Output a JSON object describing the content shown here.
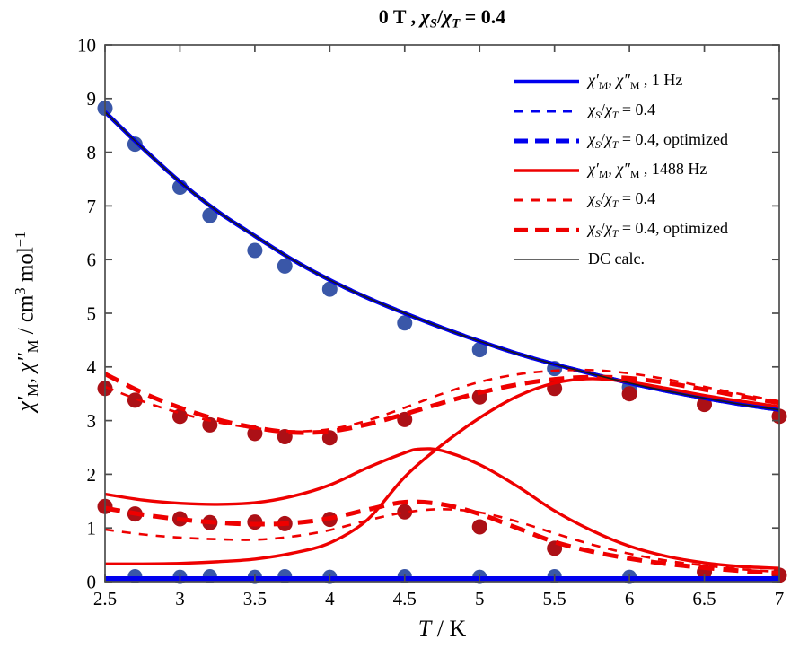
{
  "chart_data": {
    "type": "line",
    "title": "0 T , χS/χT = 0.4",
    "xlabel": "T / K",
    "ylabel": "χ′M, χ″M / cm3 mol−1",
    "xlim": [
      2.5,
      7
    ],
    "ylim": [
      0,
      10
    ],
    "grid": false,
    "legend_position": "upper right",
    "axis_color": "#4d4d4d",
    "title_segments": [
      {
        "t": "0 T , "
      },
      {
        "t": "χ",
        "i": true
      },
      {
        "t": "S",
        "i": true,
        "sub": true
      },
      {
        "t": "/"
      },
      {
        "t": "χ",
        "i": true
      },
      {
        "t": "T",
        "i": true,
        "sub": true
      },
      {
        "t": " = 0.4"
      }
    ],
    "xlabel_segments": [
      {
        "t": "T",
        "i": true
      },
      {
        "t": " / K"
      }
    ],
    "ylabel_segments": [
      {
        "t": "χ′",
        "i": true
      },
      {
        "t": "M",
        "sub": true
      },
      {
        "t": ", "
      },
      {
        "t": "χ″",
        "i": true
      },
      {
        "t": "M",
        "sub": true
      },
      {
        "t": " / cm"
      },
      {
        "t": "3",
        "sup": true
      },
      {
        "t": " mol"
      },
      {
        "t": "−1",
        "sup": true
      }
    ],
    "xticks": [
      "2.5",
      "3",
      "3.5",
      "4",
      "4.5",
      "5",
      "5.5",
      "6",
      "6.5",
      "7"
    ],
    "xtick_values": [
      2.5,
      3,
      3.5,
      4,
      4.5,
      5,
      5.5,
      6,
      6.5,
      7
    ],
    "yticks": [
      "0",
      "1",
      "2",
      "3",
      "4",
      "5",
      "6",
      "7",
      "8",
      "9",
      "10"
    ],
    "ytick_values": [
      0,
      1,
      2,
      3,
      4,
      5,
      6,
      7,
      8,
      9,
      10
    ],
    "colors": {
      "blue_line": "#0000EE",
      "blue_marker": "#3A57A8",
      "red_line": "#EE0000",
      "red_marker": "#AC1016",
      "dc_line": "#1a1a1a"
    },
    "points": {
      "chi1_1hz": [
        [
          2.5,
          8.75
        ],
        [
          2.75,
          8.08
        ],
        [
          3,
          7.45
        ],
        [
          3.25,
          6.9
        ],
        [
          3.5,
          6.44
        ],
        [
          3.75,
          6.0
        ],
        [
          4,
          5.62
        ],
        [
          4.25,
          5.29
        ],
        [
          4.5,
          5.0
        ],
        [
          4.75,
          4.73
        ],
        [
          5,
          4.48
        ],
        [
          5.25,
          4.25
        ],
        [
          5.5,
          4.05
        ],
        [
          5.75,
          3.87
        ],
        [
          6,
          3.7
        ],
        [
          6.25,
          3.55
        ],
        [
          6.5,
          3.42
        ],
        [
          6.75,
          3.3
        ],
        [
          7,
          3.2
        ]
      ],
      "chi2_1hz": [
        [
          2.5,
          0.05
        ],
        [
          4.75,
          0.05
        ],
        [
          7,
          0.05
        ]
      ],
      "chi1_1488": [
        [
          2.5,
          0.33
        ],
        [
          2.75,
          0.33
        ],
        [
          3,
          0.34
        ],
        [
          3.25,
          0.37
        ],
        [
          3.5,
          0.42
        ],
        [
          3.75,
          0.53
        ],
        [
          4,
          0.72
        ],
        [
          4.25,
          1.15
        ],
        [
          4.5,
          1.95
        ],
        [
          4.75,
          2.55
        ],
        [
          5,
          3.05
        ],
        [
          5.25,
          3.45
        ],
        [
          5.5,
          3.7
        ],
        [
          5.75,
          3.78
        ],
        [
          6,
          3.72
        ],
        [
          6.25,
          3.6
        ],
        [
          6.5,
          3.47
        ],
        [
          6.75,
          3.36
        ],
        [
          7,
          3.26
        ]
      ],
      "chi2_1488": [
        [
          2.5,
          1.63
        ],
        [
          2.75,
          1.52
        ],
        [
          3,
          1.46
        ],
        [
          3.25,
          1.44
        ],
        [
          3.5,
          1.47
        ],
        [
          3.75,
          1.59
        ],
        [
          4,
          1.8
        ],
        [
          4.25,
          2.12
        ],
        [
          4.5,
          2.4
        ],
        [
          4.6,
          2.47
        ],
        [
          4.75,
          2.44
        ],
        [
          5,
          2.18
        ],
        [
          5.25,
          1.78
        ],
        [
          5.5,
          1.32
        ],
        [
          5.75,
          0.95
        ],
        [
          6,
          0.66
        ],
        [
          6.25,
          0.47
        ],
        [
          6.5,
          0.35
        ],
        [
          6.75,
          0.28
        ],
        [
          7,
          0.25
        ]
      ],
      "chi1_1488_fit": [
        [
          2.5,
          3.63
        ],
        [
          2.75,
          3.36
        ],
        [
          3,
          3.14
        ],
        [
          3.25,
          2.97
        ],
        [
          3.5,
          2.86
        ],
        [
          3.75,
          2.8
        ],
        [
          4,
          2.84
        ],
        [
          4.25,
          3.0
        ],
        [
          4.5,
          3.24
        ],
        [
          4.75,
          3.5
        ],
        [
          5,
          3.72
        ],
        [
          5.25,
          3.86
        ],
        [
          5.5,
          3.93
        ],
        [
          5.75,
          3.94
        ],
        [
          6,
          3.88
        ],
        [
          6.25,
          3.77
        ],
        [
          6.5,
          3.63
        ],
        [
          6.75,
          3.49
        ],
        [
          7,
          3.36
        ]
      ],
      "chi1_1488_opt": [
        [
          2.5,
          3.87
        ],
        [
          2.75,
          3.52
        ],
        [
          3,
          3.24
        ],
        [
          3.25,
          3.02
        ],
        [
          3.5,
          2.87
        ],
        [
          3.75,
          2.78
        ],
        [
          4,
          2.8
        ],
        [
          4.25,
          2.93
        ],
        [
          4.5,
          3.12
        ],
        [
          4.75,
          3.33
        ],
        [
          5,
          3.52
        ],
        [
          5.25,
          3.67
        ],
        [
          5.5,
          3.77
        ],
        [
          5.75,
          3.81
        ],
        [
          6,
          3.79
        ],
        [
          6.25,
          3.7
        ],
        [
          6.5,
          3.58
        ],
        [
          6.75,
          3.45
        ],
        [
          7,
          3.33
        ]
      ],
      "chi2_1488_fit": [
        [
          2.5,
          0.97
        ],
        [
          2.75,
          0.88
        ],
        [
          3,
          0.82
        ],
        [
          3.25,
          0.79
        ],
        [
          3.5,
          0.78
        ],
        [
          3.75,
          0.84
        ],
        [
          4,
          0.96
        ],
        [
          4.25,
          1.14
        ],
        [
          4.5,
          1.29
        ],
        [
          4.75,
          1.35
        ],
        [
          5,
          1.29
        ],
        [
          5.25,
          1.12
        ],
        [
          5.5,
          0.9
        ],
        [
          5.75,
          0.69
        ],
        [
          6,
          0.52
        ],
        [
          6.25,
          0.39
        ],
        [
          6.5,
          0.3
        ],
        [
          6.75,
          0.23
        ],
        [
          7,
          0.18
        ]
      ],
      "chi2_1488_opt": [
        [
          2.5,
          1.37
        ],
        [
          2.75,
          1.25
        ],
        [
          3,
          1.16
        ],
        [
          3.25,
          1.1
        ],
        [
          3.5,
          1.07
        ],
        [
          3.75,
          1.09
        ],
        [
          4,
          1.18
        ],
        [
          4.25,
          1.34
        ],
        [
          4.5,
          1.48
        ],
        [
          4.75,
          1.44
        ],
        [
          5,
          1.26
        ],
        [
          5.25,
          1.0
        ],
        [
          5.5,
          0.74
        ],
        [
          5.75,
          0.56
        ],
        [
          6,
          0.43
        ],
        [
          6.25,
          0.33
        ],
        [
          6.5,
          0.26
        ],
        [
          6.75,
          0.2
        ],
        [
          7,
          0.16
        ]
      ]
    },
    "series": [
      {
        "id": "chi1-1hz-solid",
        "points": "chi1_1hz",
        "color": "#0000EE",
        "width": 4.5,
        "dash": null
      },
      {
        "id": "chi1-1hz-dash-thin",
        "points": "chi1_1hz",
        "color": "#0000EE",
        "width": 2.6,
        "dash": "10,9"
      },
      {
        "id": "chi1-1hz-dash-thick",
        "points": "chi1_1hz",
        "color": "#0000EE",
        "width": 4.5,
        "dash": "17,10"
      },
      {
        "id": "chi2-1hz-solid",
        "points": "chi2_1hz",
        "color": "#0000EE",
        "width": 6,
        "dash": null
      },
      {
        "id": "chi2-1hz-dash-thick",
        "points": "chi2_1hz",
        "color": "#0000EE",
        "width": 5,
        "dash": "17,10"
      },
      {
        "id": "chi2-1488-solid",
        "points": "chi2_1488",
        "color": "#EE0000",
        "width": 3.4,
        "dash": null
      },
      {
        "id": "chi1-1488-solid",
        "points": "chi1_1488",
        "color": "#EE0000",
        "width": 3.4,
        "dash": null
      },
      {
        "id": "chi2-1488-dash-thin",
        "points": "chi2_1488_fit",
        "color": "#EE0000",
        "width": 2.6,
        "dash": "10,9"
      },
      {
        "id": "chi2-1488-dash-thick",
        "points": "chi2_1488_opt",
        "color": "#EE0000",
        "width": 5,
        "dash": "17,10"
      },
      {
        "id": "chi1-1488-dash-thin",
        "points": "chi1_1488_fit",
        "color": "#EE0000",
        "width": 2.6,
        "dash": "10,9"
      },
      {
        "id": "chi1-1488-dash-thick",
        "points": "chi1_1488_opt",
        "color": "#EE0000",
        "width": 5,
        "dash": "17,10"
      },
      {
        "id": "dc-calc",
        "points": "chi1_1hz",
        "color": "#1a1a1a",
        "width": 1.6,
        "dash": null
      }
    ],
    "scatter": [
      {
        "id": "chi1-1hz-data",
        "color": "#3A57A8",
        "r": 8.5,
        "points": [
          [
            2.5,
            8.82
          ],
          [
            2.7,
            8.15
          ],
          [
            3,
            7.35
          ],
          [
            3.2,
            6.82
          ],
          [
            3.5,
            6.17
          ],
          [
            3.7,
            5.88
          ],
          [
            4,
            5.45
          ],
          [
            4.5,
            4.82
          ],
          [
            5,
            4.32
          ],
          [
            5.5,
            3.97
          ],
          [
            6,
            3.62
          ]
        ]
      },
      {
        "id": "chi2-1hz-data",
        "color": "#3A57A8",
        "r": 8,
        "points": [
          [
            2.7,
            0.1
          ],
          [
            3,
            0.09
          ],
          [
            3.2,
            0.1
          ],
          [
            3.5,
            0.09
          ],
          [
            3.7,
            0.1
          ],
          [
            4,
            0.09
          ],
          [
            4.5,
            0.1
          ],
          [
            5,
            0.09
          ],
          [
            5.5,
            0.1
          ],
          [
            6,
            0.09
          ]
        ]
      },
      {
        "id": "chi1-1488-data",
        "color": "#AC1016",
        "r": 8.5,
        "points": [
          [
            2.5,
            3.6
          ],
          [
            2.7,
            3.38
          ],
          [
            3,
            3.08
          ],
          [
            3.2,
            2.92
          ],
          [
            3.5,
            2.76
          ],
          [
            3.7,
            2.7
          ],
          [
            4,
            2.68
          ],
          [
            4.5,
            3.02
          ],
          [
            5,
            3.44
          ],
          [
            5.5,
            3.6
          ],
          [
            6,
            3.5
          ],
          [
            6.5,
            3.3
          ],
          [
            7,
            3.08
          ]
        ]
      },
      {
        "id": "chi2-1488-data",
        "color": "#AC1016",
        "r": 8.5,
        "points": [
          [
            2.5,
            1.4
          ],
          [
            2.7,
            1.26
          ],
          [
            3,
            1.17
          ],
          [
            3.2,
            1.1
          ],
          [
            3.5,
            1.11
          ],
          [
            3.7,
            1.08
          ],
          [
            4,
            1.16
          ],
          [
            4.5,
            1.3
          ],
          [
            5,
            1.02
          ],
          [
            5.5,
            0.62
          ],
          [
            6.5,
            0.18
          ],
          [
            7,
            0.12
          ]
        ]
      }
    ],
    "legend": [
      {
        "id": "legend-chi-1hz",
        "label": "χ′M, χ″M , 1 Hz",
        "segments": [
          {
            "t": "χ′",
            "i": true
          },
          {
            "t": "M",
            "sub": true
          },
          {
            "t": ", "
          },
          {
            "t": "χ″",
            "i": true
          },
          {
            "t": "M",
            "sub": true
          },
          {
            "t": " , 1 Hz"
          }
        ],
        "style": {
          "color": "#0000EE",
          "width": 4.5,
          "dash": null
        }
      },
      {
        "id": "legend-blue-fit",
        "label": "χS/χT = 0.4",
        "segments": [
          {
            "t": "χ",
            "i": true
          },
          {
            "t": "S",
            "i": true,
            "sub": true
          },
          {
            "t": "/"
          },
          {
            "t": "χ",
            "i": true
          },
          {
            "t": "T",
            "i": true,
            "sub": true
          },
          {
            "t": " = 0.4"
          }
        ],
        "style": {
          "color": "#0000EE",
          "width": 3,
          "dash": "10,8"
        }
      },
      {
        "id": "legend-blue-opt",
        "label": "χS/χT = 0.4, optimized",
        "segments": [
          {
            "t": "χ",
            "i": true
          },
          {
            "t": "S",
            "i": true,
            "sub": true
          },
          {
            "t": "/"
          },
          {
            "t": "χ",
            "i": true
          },
          {
            "t": "T",
            "i": true,
            "sub": true
          },
          {
            "t": " = 0.4, optimized"
          }
        ],
        "style": {
          "color": "#0000EE",
          "width": 5,
          "dash": "15,8"
        }
      },
      {
        "id": "legend-chi-1488",
        "label": "χ′M, χ″M , 1488 Hz",
        "segments": [
          {
            "t": "χ′",
            "i": true
          },
          {
            "t": "M",
            "sub": true
          },
          {
            "t": ", "
          },
          {
            "t": "χ″",
            "i": true
          },
          {
            "t": "M",
            "sub": true
          },
          {
            "t": " , 1488 Hz"
          }
        ],
        "style": {
          "color": "#EE0000",
          "width": 3.4,
          "dash": null
        }
      },
      {
        "id": "legend-red-fit",
        "label": "χS/χT = 0.4",
        "segments": [
          {
            "t": "χ",
            "i": true
          },
          {
            "t": "S",
            "i": true,
            "sub": true
          },
          {
            "t": "/"
          },
          {
            "t": "χ",
            "i": true
          },
          {
            "t": "T",
            "i": true,
            "sub": true
          },
          {
            "t": " = 0.4"
          }
        ],
        "style": {
          "color": "#EE0000",
          "width": 3,
          "dash": "10,8"
        }
      },
      {
        "id": "legend-red-opt",
        "label": "χS/χT = 0.4, optimized",
        "segments": [
          {
            "t": "χ",
            "i": true
          },
          {
            "t": "S",
            "i": true,
            "sub": true
          },
          {
            "t": "/"
          },
          {
            "t": "χ",
            "i": true
          },
          {
            "t": "T",
            "i": true,
            "sub": true
          },
          {
            "t": " = 0.4, optimized"
          }
        ],
        "style": {
          "color": "#EE0000",
          "width": 4.2,
          "dash": "15,8"
        }
      },
      {
        "id": "legend-dc-calc",
        "label": "DC calc.",
        "segments": [
          {
            "t": "DC calc."
          }
        ],
        "style": {
          "color": "#333333",
          "width": 1.6,
          "dash": null
        }
      }
    ]
  }
}
